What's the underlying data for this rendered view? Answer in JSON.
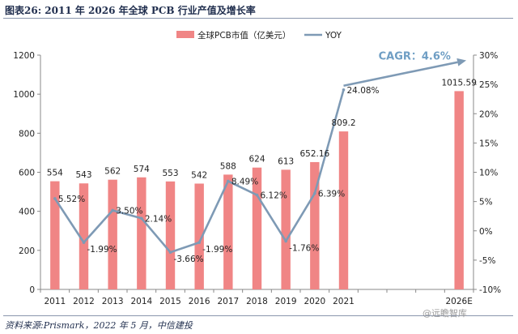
{
  "figure": {
    "title": "图表26:   2011 年 2026 年全球 PCB 行业产值及增长率",
    "source": "资料来源:Prismark，2022 年 5 月，中信建投",
    "watermark": "@远瞻智库"
  },
  "colors": {
    "bar": "#F08585",
    "line": "#7E9AB5",
    "cagr": "#6F9EC4",
    "axis": "#888888"
  },
  "chart_data": {
    "type": "bar",
    "categories": [
      "2011",
      "2012",
      "2013",
      "2014",
      "2015",
      "2016",
      "2017",
      "2018",
      "2019",
      "2020",
      "2021",
      "",
      "",
      "",
      "2026E"
    ],
    "series": [
      {
        "name": "全球PCB市值（亿美元）",
        "type": "bar",
        "axis": "left",
        "values": [
          554,
          543,
          562,
          574,
          553,
          542,
          588,
          624,
          613,
          652.16,
          809.2,
          null,
          null,
          null,
          1015.59
        ],
        "labels": [
          "554",
          "543",
          "562",
          "574",
          "553",
          "542",
          "588",
          "624",
          "613",
          "652.16",
          "809.2",
          "",
          "",
          "",
          "1015.59"
        ]
      },
      {
        "name": "YOY",
        "type": "line",
        "axis": "right",
        "values": [
          5.52,
          -1.99,
          3.5,
          2.14,
          -3.66,
          -1.99,
          8.49,
          6.12,
          -1.76,
          6.39,
          24.08,
          null,
          null,
          null,
          null
        ],
        "labels": [
          "5.52%",
          "-1.99%",
          "3.50%",
          "2.14%",
          "-3.66%",
          "-1.99%",
          "8.49%",
          "6.12%",
          "-1.76%",
          "6.39%",
          "24.08%",
          "",
          "",
          "",
          ""
        ]
      }
    ],
    "left_axis": {
      "min": 0,
      "max": 1200,
      "ticks": [
        "0",
        "200",
        "400",
        "600",
        "800",
        "1000",
        "1200"
      ]
    },
    "right_axis": {
      "min": -10,
      "max": 30,
      "ticks": [
        "-10%",
        "-5%",
        "0%",
        "5%",
        "10%",
        "15%",
        "20%",
        "25%",
        "30%"
      ]
    },
    "annotation": {
      "text": "CAGR：4.6%",
      "from_category": "2021",
      "to_category": "2026E"
    },
    "legend": {
      "position": "top-center"
    }
  }
}
